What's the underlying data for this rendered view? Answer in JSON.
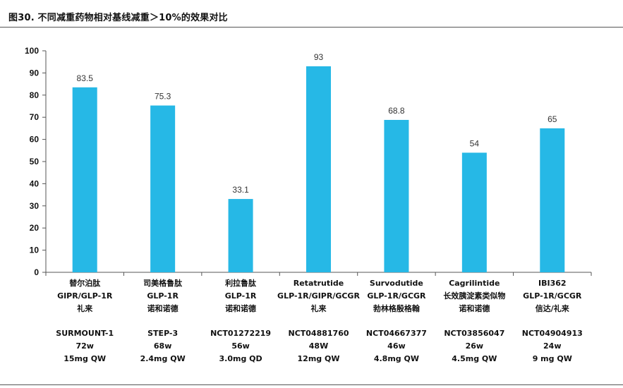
{
  "figure": {
    "title": "图30. 不同减重药物相对基线减重＞10%的效果对比"
  },
  "chart_data": {
    "type": "bar",
    "title": "",
    "xlabel": "",
    "ylabel": "",
    "ylim": [
      0,
      100
    ],
    "yticks": [
      0,
      10,
      20,
      30,
      40,
      50,
      60,
      70,
      80,
      90,
      100
    ],
    "grid": false,
    "bar_color": "#26b8e6",
    "categories": [
      {
        "lines": [
          "替尔泊肽",
          "GIPR/GLP-1R",
          "礼来"
        ],
        "trial": [
          "SURMOUNT-1",
          "72w",
          "15mg QW"
        ]
      },
      {
        "lines": [
          "司美格鲁肽",
          "GLP-1R",
          "诺和诺德"
        ],
        "trial": [
          "STEP-3",
          "68w",
          "2.4mg QW"
        ]
      },
      {
        "lines": [
          "利拉鲁肽",
          "GLP-1R",
          "诺和诺德"
        ],
        "trial": [
          "NCT01272219",
          "56w",
          "3.0mg QD"
        ]
      },
      {
        "lines": [
          "Retatrutide",
          "GLP-1R/GIPR/GCGR",
          "礼来"
        ],
        "trial": [
          "NCT04881760",
          "48W",
          "12mg QW"
        ]
      },
      {
        "lines": [
          "Survodutide",
          "GLP-1R/GCGR",
          "勃林格殷格翰"
        ],
        "trial": [
          "NCT04667377",
          "46w",
          "4.8mg QW"
        ]
      },
      {
        "lines": [
          "Cagrilintide",
          "长效胰淀素类似物",
          "诺和诺德"
        ],
        "trial": [
          "NCT03856047",
          "26w",
          "4.5mg QW"
        ]
      },
      {
        "lines": [
          "IBI362",
          "GLP-1R/GCGR",
          "信达/礼来"
        ],
        "trial": [
          "NCT04904913",
          "24w",
          "9 mg QW"
        ]
      }
    ],
    "values": [
      83.5,
      75.3,
      33.1,
      93,
      68.8,
      54,
      65
    ],
    "data_labels": [
      "83.5",
      "75.3",
      "33.1",
      "93",
      "68.8",
      "54",
      "65"
    ]
  }
}
